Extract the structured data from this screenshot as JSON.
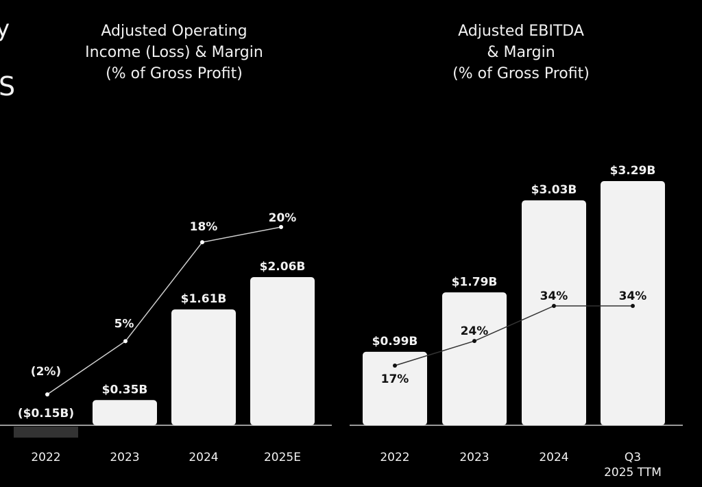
{
  "partial_left_text": [
    "y",
    "S"
  ],
  "chart_data": [
    {
      "type": "bar",
      "title": "Adjusted Operating\nIncome (Loss) & Margin\n(% of Gross Profit)",
      "categories": [
        "2022",
        "2023",
        "2024",
        "2025E"
      ],
      "series": [
        {
          "name": "Adjusted Operating Income (Loss)",
          "unit": "$B",
          "values": [
            -0.15,
            0.35,
            1.61,
            2.06
          ],
          "labels": [
            "($0.15B)",
            "$0.35B",
            "$1.61B",
            "$2.06B"
          ]
        },
        {
          "name": "Margin (% of Gross Profit)",
          "type": "line",
          "unit": "%",
          "values": [
            -2,
            5,
            18,
            20
          ],
          "labels": [
            "(2%)",
            "5%",
            "18%",
            "20%"
          ]
        }
      ],
      "colors": {
        "bar": "#f2f2f2",
        "negative_bar": "#333333",
        "line": "#d0d0d0"
      },
      "grid": false,
      "legend": "none"
    },
    {
      "type": "bar",
      "title": "Adjusted EBITDA\n& Margin\n(% of Gross Profit)",
      "categories": [
        "2022",
        "2023",
        "2024",
        "Q3\n2025 TTM"
      ],
      "series": [
        {
          "name": "Adjusted EBITDA",
          "unit": "$B",
          "values": [
            0.99,
            1.79,
            3.03,
            3.29
          ],
          "labels": [
            "$0.99B",
            "$1.79B",
            "$3.03B",
            "$3.29B"
          ]
        },
        {
          "name": "Margin (% of Gross Profit)",
          "type": "line",
          "unit": "%",
          "values": [
            17,
            24,
            34,
            34
          ],
          "labels": [
            "17%",
            "24%",
            "34%",
            "34%"
          ]
        }
      ],
      "colors": {
        "bar": "#f2f2f2",
        "line": "#333333"
      },
      "grid": false,
      "legend": "none"
    }
  ]
}
